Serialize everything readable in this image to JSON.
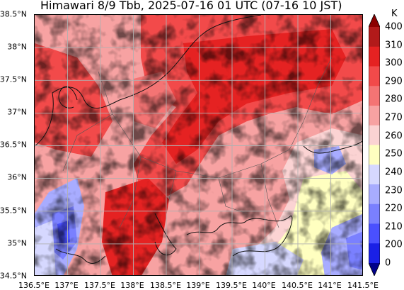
{
  "title": "Himawari 8/9 Tbb, 2025-07-16 01 UTC (07-16 10 JST)",
  "map": {
    "lon_range": [
      136.5,
      141.5
    ],
    "lat_range": [
      34.5,
      38.5
    ],
    "grid": true,
    "lat_ticks": [
      {
        "value": 38.5,
        "label": "38.5°N"
      },
      {
        "value": 38.0,
        "label": "38°N"
      },
      {
        "value": 37.5,
        "label": "37.5°N"
      },
      {
        "value": 37.0,
        "label": "37°N"
      },
      {
        "value": 36.5,
        "label": "36.5°N"
      },
      {
        "value": 36.0,
        "label": "36°N"
      },
      {
        "value": 35.5,
        "label": "35.5°N"
      },
      {
        "value": 35.0,
        "label": "35°N"
      },
      {
        "value": 34.5,
        "label": "34.5°N"
      }
    ],
    "lon_ticks": [
      {
        "value": 136.5,
        "label": "136.5°E"
      },
      {
        "value": 137.0,
        "label": "137°E"
      },
      {
        "value": 137.5,
        "label": "137.5°E"
      },
      {
        "value": 138.0,
        "label": "138°E"
      },
      {
        "value": 138.5,
        "label": "138.5°E"
      },
      {
        "value": 139.0,
        "label": "139°E"
      },
      {
        "value": 139.5,
        "label": "139.5°E"
      },
      {
        "value": 140.0,
        "label": "140°E"
      },
      {
        "value": 140.5,
        "label": "140.5°E"
      },
      {
        "value": 141.0,
        "label": "141°E"
      },
      {
        "value": 141.5,
        "label": "141.5°E"
      }
    ]
  },
  "colorbar": {
    "unit": "K",
    "levels": [
      {
        "label": "400",
        "color": "#8b0000"
      },
      {
        "label": "310",
        "color": "#b21a1a"
      },
      {
        "label": "300",
        "color": "#e52222"
      },
      {
        "label": "290",
        "color": "#f24a4a"
      },
      {
        "label": "280",
        "color": "#f47474"
      },
      {
        "label": "270",
        "color": "#f7a2a2"
      },
      {
        "label": "260",
        "color": "#fbd3d3"
      },
      {
        "label": "250",
        "color": "#ffffc0"
      },
      {
        "label": "240",
        "color": "#d6d8ff"
      },
      {
        "label": "230",
        "color": "#a8acff"
      },
      {
        "label": "220",
        "color": "#7a80ff"
      },
      {
        "label": "210",
        "color": "#4a50ff"
      },
      {
        "label": "200",
        "color": "#1a20e6"
      },
      {
        "label": "0",
        "color": "#00008b"
      }
    ]
  }
}
